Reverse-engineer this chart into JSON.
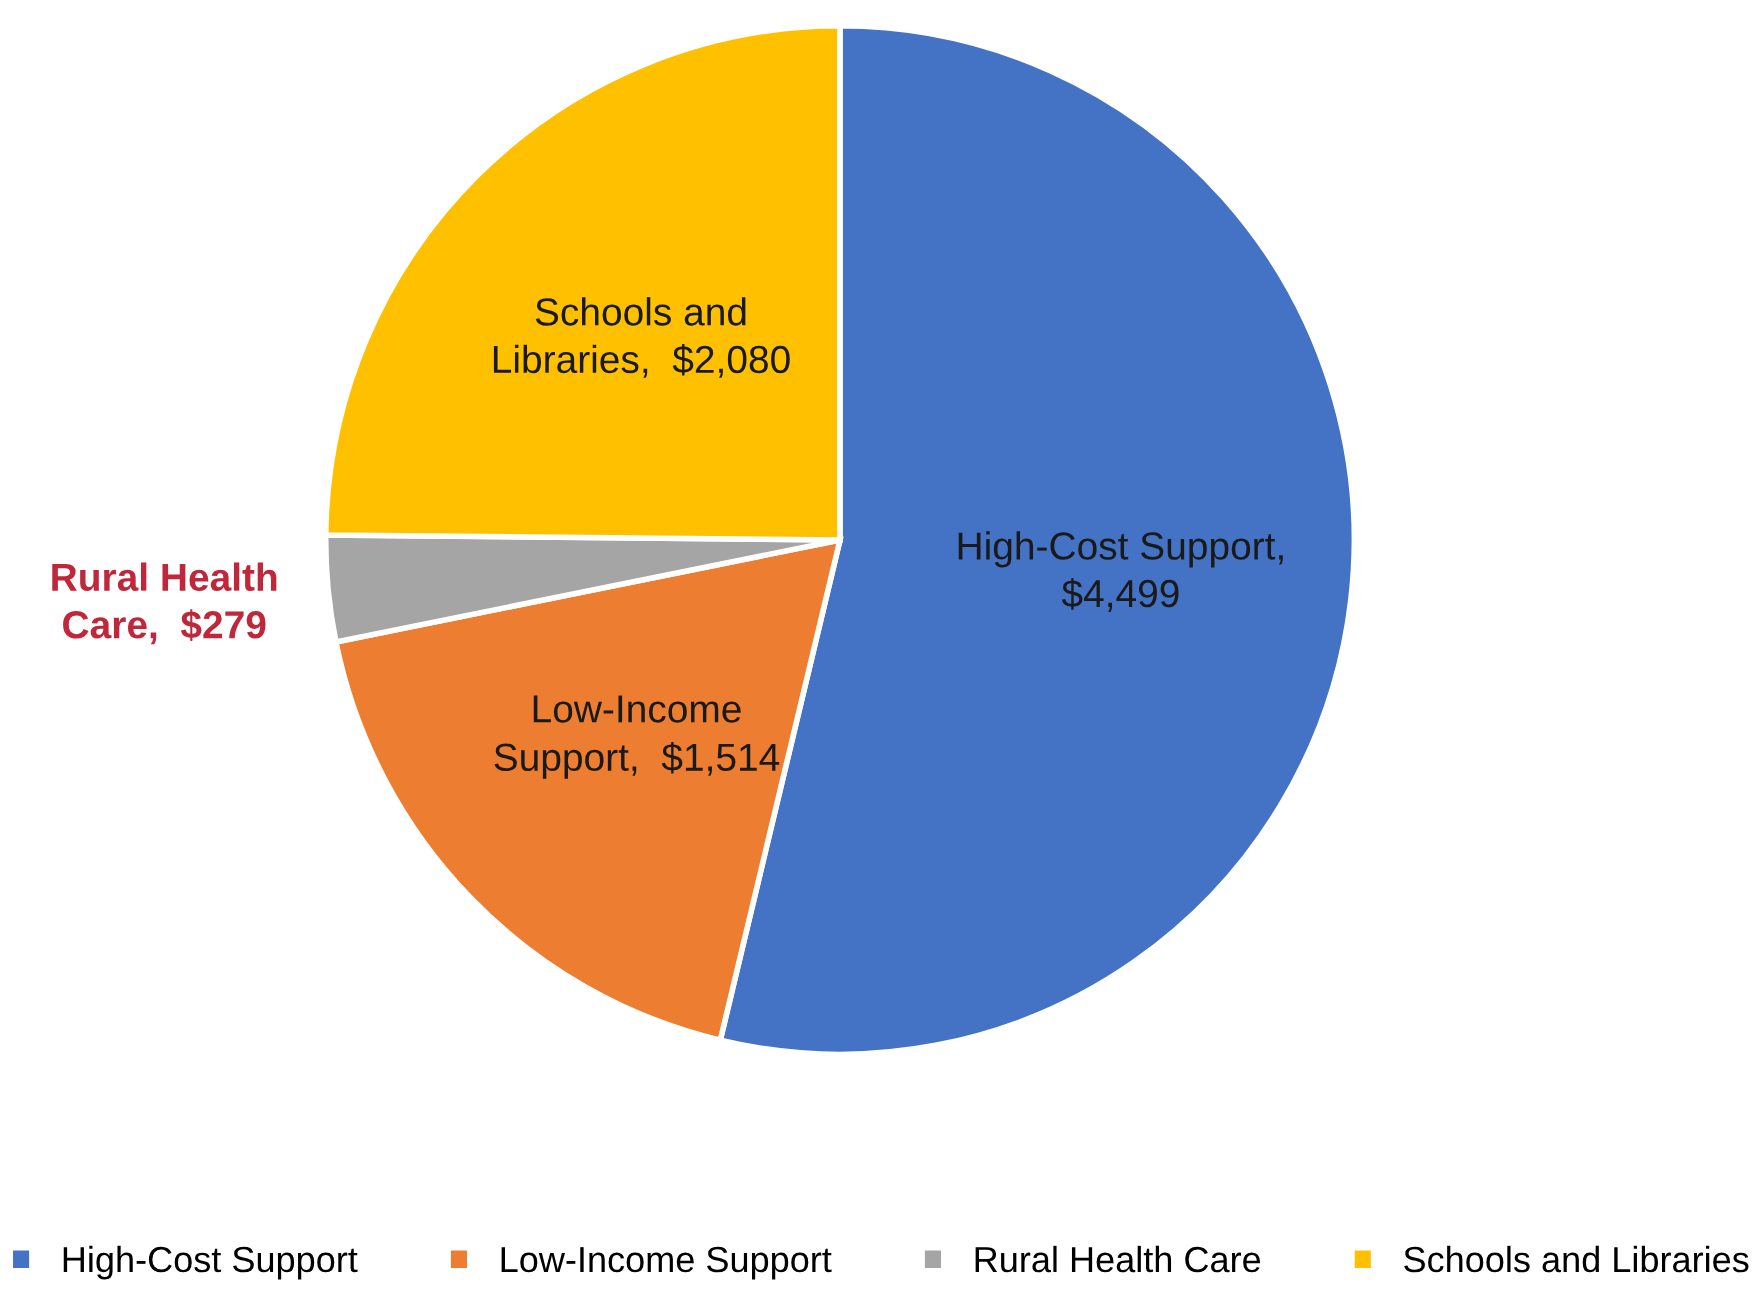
{
  "chart_data": {
    "type": "pie",
    "categories": [
      "High-Cost Support",
      "Low-Income Support",
      "Rural Health Care",
      "Schools and Libraries"
    ],
    "values": [
      4499,
      1514,
      279,
      2080
    ],
    "colors": [
      "#4472c4",
      "#ed7d31",
      "#a5a5a5",
      "#ffc000"
    ],
    "value_labels": [
      "High-Cost Support,\n$4,499",
      "Low-Income\nSupport,  $1,514",
      "Rural Health\nCare,  $279",
      "Schools and\nLibraries,  $2,080"
    ],
    "legend": "bottom"
  }
}
